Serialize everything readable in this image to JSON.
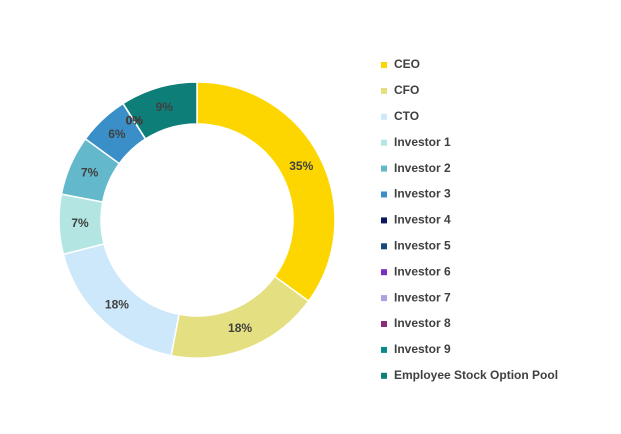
{
  "chart_data": {
    "type": "donut",
    "categories": [
      "CEO",
      "CFO",
      "CTO",
      "Investor 1",
      "Investor 2",
      "Investor 3",
      "Investor 4",
      "Investor 5",
      "Investor 6",
      "Investor 7",
      "Investor 8",
      "Investor 9",
      "Employee Stock Option Pool"
    ],
    "values": [
      35,
      18,
      18,
      7,
      7,
      6,
      0,
      0,
      0,
      0,
      0,
      0,
      9
    ],
    "value_labels": [
      "35%",
      "18%",
      "18%",
      "7%",
      "7%",
      "6%",
      "0%",
      "0%",
      "0%",
      "0%",
      "0%",
      "0%",
      "9%"
    ],
    "colors": [
      "#fdd600",
      "#e4df80",
      "#cde7fb",
      "#b3e6e2",
      "#63b8cc",
      "#3a8fc8",
      "#0a1a5c",
      "#114a7a",
      "#7b2fbe",
      "#a9a1e0",
      "#8b2b7e",
      "#0f8a8a",
      "#0d7e78"
    ],
    "legend": "right"
  }
}
